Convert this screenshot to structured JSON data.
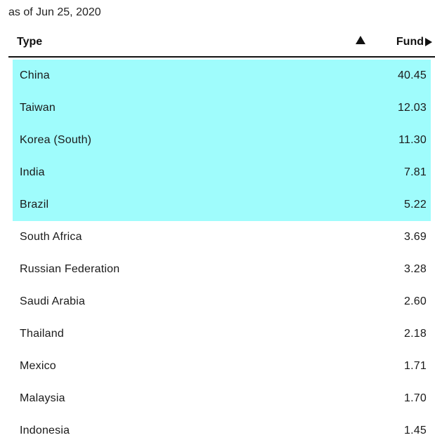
{
  "as_of": "as of Jun 25, 2020",
  "table": {
    "columns": {
      "type": "Type",
      "fund": "Fund"
    },
    "sort_icon": "triangle-up-icon",
    "fund_icon": "play-right-icon",
    "highlight_color": "#9ffcfc",
    "rows": [
      {
        "country": "China",
        "value": "40.45",
        "highlighted": true
      },
      {
        "country": "Taiwan",
        "value": "12.03",
        "highlighted": true
      },
      {
        "country": "Korea (South)",
        "value": "11.30",
        "highlighted": true
      },
      {
        "country": "India",
        "value": "7.81",
        "highlighted": true
      },
      {
        "country": "Brazil",
        "value": "5.22",
        "highlighted": true
      },
      {
        "country": "South Africa",
        "value": "3.69",
        "highlighted": false
      },
      {
        "country": "Russian Federation",
        "value": "3.28",
        "highlighted": false
      },
      {
        "country": "Saudi Arabia",
        "value": "2.60",
        "highlighted": false
      },
      {
        "country": "Thailand",
        "value": "2.18",
        "highlighted": false
      },
      {
        "country": "Mexico",
        "value": "1.71",
        "highlighted": false
      },
      {
        "country": "Malaysia",
        "value": "1.70",
        "highlighted": false
      },
      {
        "country": "Indonesia",
        "value": "1.45",
        "highlighted": false
      }
    ]
  }
}
